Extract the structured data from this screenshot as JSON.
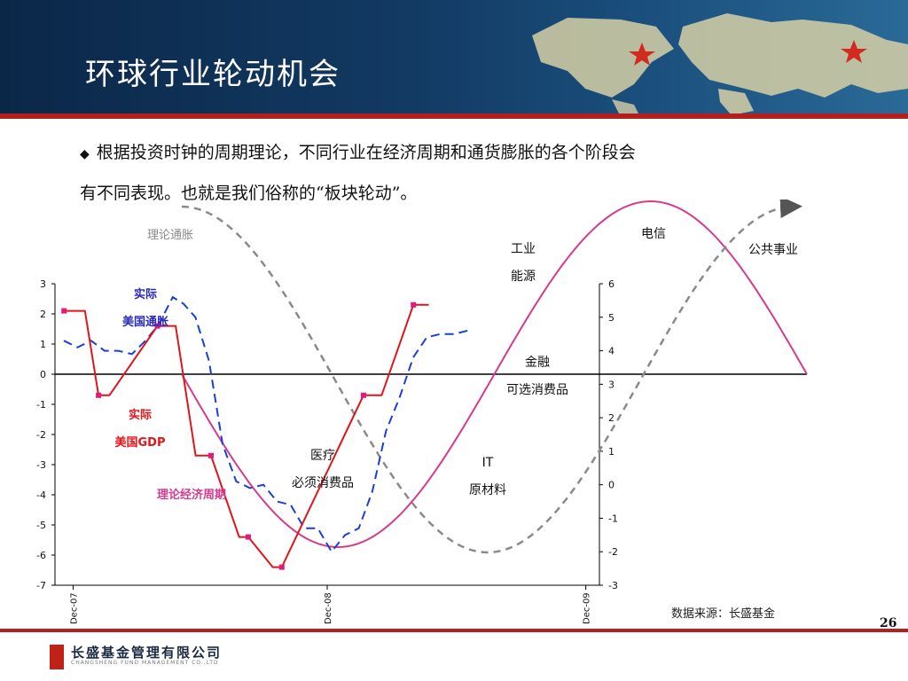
{
  "title": "环球行业轮动机会",
  "bullet_text_line1": "根据投资时钟的周期理论，不同行业在经济周期和通货膨胀的各个阶段会",
  "bullet_text_line2": "有不同表现。也就是我们俗称的“板块轮动”。",
  "footer": {
    "source": "数据来源：长盛基金",
    "page_number": "26",
    "company_cn": "长盛基金管理有限公司",
    "company_en": "CHANGSHENG FUND MANAGEMENT CO.,LTD"
  },
  "colors": {
    "header_bg": "#123a63",
    "accent_red": "#b41f1f",
    "gdp_red": "#e0151b",
    "inflation_blue": "#1a3fd6",
    "theory_cycle_magenta": "#d63a8c",
    "theory_inflation_gray": "#8a8a8a"
  },
  "chart_data": {
    "type": "line",
    "x_ticks": [
      "Dec-07",
      "Dec-08",
      "Dec-09"
    ],
    "left_axis": {
      "ylim": [
        -7,
        3
      ],
      "ticks": [
        "3",
        "2",
        "1",
        "0",
        "-1",
        "-2",
        "-3",
        "-4",
        "-5",
        "-6",
        "-7"
      ]
    },
    "right_axis": {
      "ylim": [
        -3,
        6
      ],
      "ticks": [
        "6",
        "5",
        "4",
        "3",
        "2",
        "1",
        "0",
        "-1",
        "-2",
        "-3"
      ]
    },
    "series": [
      {
        "name": "实际美国GDP",
        "axis": "left",
        "x": [
          0.1,
          0.33,
          0.48,
          0.6,
          1.13,
          1.33,
          1.55,
          1.72,
          2.03,
          2.13,
          2.4,
          2.5,
          3.4,
          3.6,
          3.95,
          4.12
        ],
        "y": [
          2.1,
          2.1,
          -0.7,
          -0.7,
          1.6,
          1.6,
          -2.7,
          -2.7,
          -5.4,
          -5.4,
          -6.4,
          -6.4,
          -0.7,
          -0.7,
          2.3,
          2.3
        ],
        "markers": [
          0.1,
          0.48,
          1.13,
          1.72,
          2.13,
          2.5,
          3.4,
          3.95
        ]
      },
      {
        "name": "实际美国通胀",
        "axis": "right",
        "x": [
          0.0,
          0.15,
          0.3,
          0.45,
          0.6,
          0.75,
          0.9,
          1.05,
          1.2,
          1.32,
          1.45,
          1.6,
          1.75,
          1.9,
          2.05,
          2.2,
          2.35,
          2.5,
          2.65,
          2.8,
          2.95,
          3.1,
          3.25,
          3.4,
          3.55,
          3.7,
          3.85,
          4.0,
          4.15,
          4.3,
          4.45
        ],
        "y": [
          4.3,
          4.1,
          4.3,
          4.0,
          4.0,
          3.9,
          4.3,
          4.8,
          5.6,
          5.4,
          5.0,
          3.7,
          1.2,
          0.1,
          -0.1,
          0.0,
          -0.5,
          -0.6,
          -1.3,
          -1.3,
          -2.0,
          -1.5,
          -1.3,
          -0.2,
          1.6,
          2.6,
          3.8,
          4.4,
          4.5,
          4.5,
          4.6
        ]
      }
    ],
    "theory_curves": [
      {
        "name": "理论经济周期",
        "label": "理论经济周期",
        "style": "solid"
      },
      {
        "name": "理论通胀",
        "label": "理论通胀",
        "style": "dashed"
      }
    ],
    "annotations": [
      {
        "key": "theory_inflation",
        "text": "理论通胀"
      },
      {
        "key": "us_inflation_1",
        "text": "实际"
      },
      {
        "key": "us_inflation_2",
        "text": "美国通胀"
      },
      {
        "key": "us_gdp_1",
        "text": "实际"
      },
      {
        "key": "us_gdp_2",
        "text": "美国GDP"
      },
      {
        "key": "theory_cycle",
        "text": "理论经济周期"
      },
      {
        "key": "industrial",
        "text": "工业"
      },
      {
        "key": "energy",
        "text": "能源"
      },
      {
        "key": "telecom",
        "text": "电信"
      },
      {
        "key": "utilities",
        "text": "公共事业"
      },
      {
        "key": "finance",
        "text": "金融"
      },
      {
        "key": "consumer_disc",
        "text": "可选消费品"
      },
      {
        "key": "healthcare",
        "text": "医疗"
      },
      {
        "key": "consumer_staples",
        "text": "必须消费品"
      },
      {
        "key": "it",
        "text": "IT"
      },
      {
        "key": "materials",
        "text": "原材料"
      }
    ]
  }
}
